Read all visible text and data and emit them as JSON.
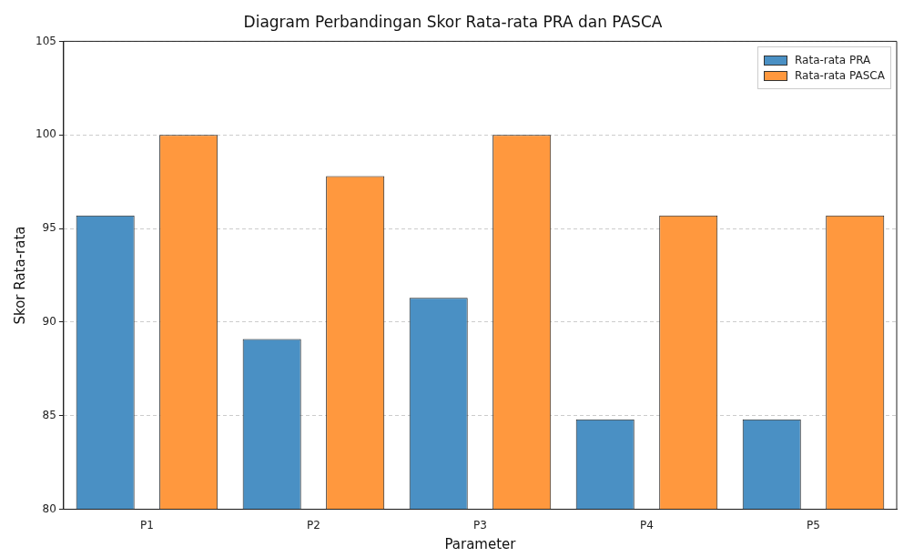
{
  "chart_data": {
    "type": "bar",
    "title": "Diagram Perbandingan Skor Rata-rata PRA dan PASCA",
    "xlabel": "Parameter",
    "ylabel": "Skor Rata-rata",
    "categories": [
      "P1",
      "P2",
      "P3",
      "P4",
      "P5"
    ],
    "series": [
      {
        "name": "Rata-rata PRA",
        "color": "#4a90c4",
        "values": [
          95.7,
          89.1,
          91.3,
          84.8,
          84.8
        ]
      },
      {
        "name": "Rata-rata PASCA",
        "color": "#ff983e",
        "values": [
          100,
          97.8,
          100,
          95.7,
          95.7
        ]
      }
    ],
    "ylim": [
      80,
      105
    ],
    "yticks": [
      80,
      85,
      90,
      95,
      100,
      105
    ],
    "grid": "y",
    "legend": "top right"
  }
}
